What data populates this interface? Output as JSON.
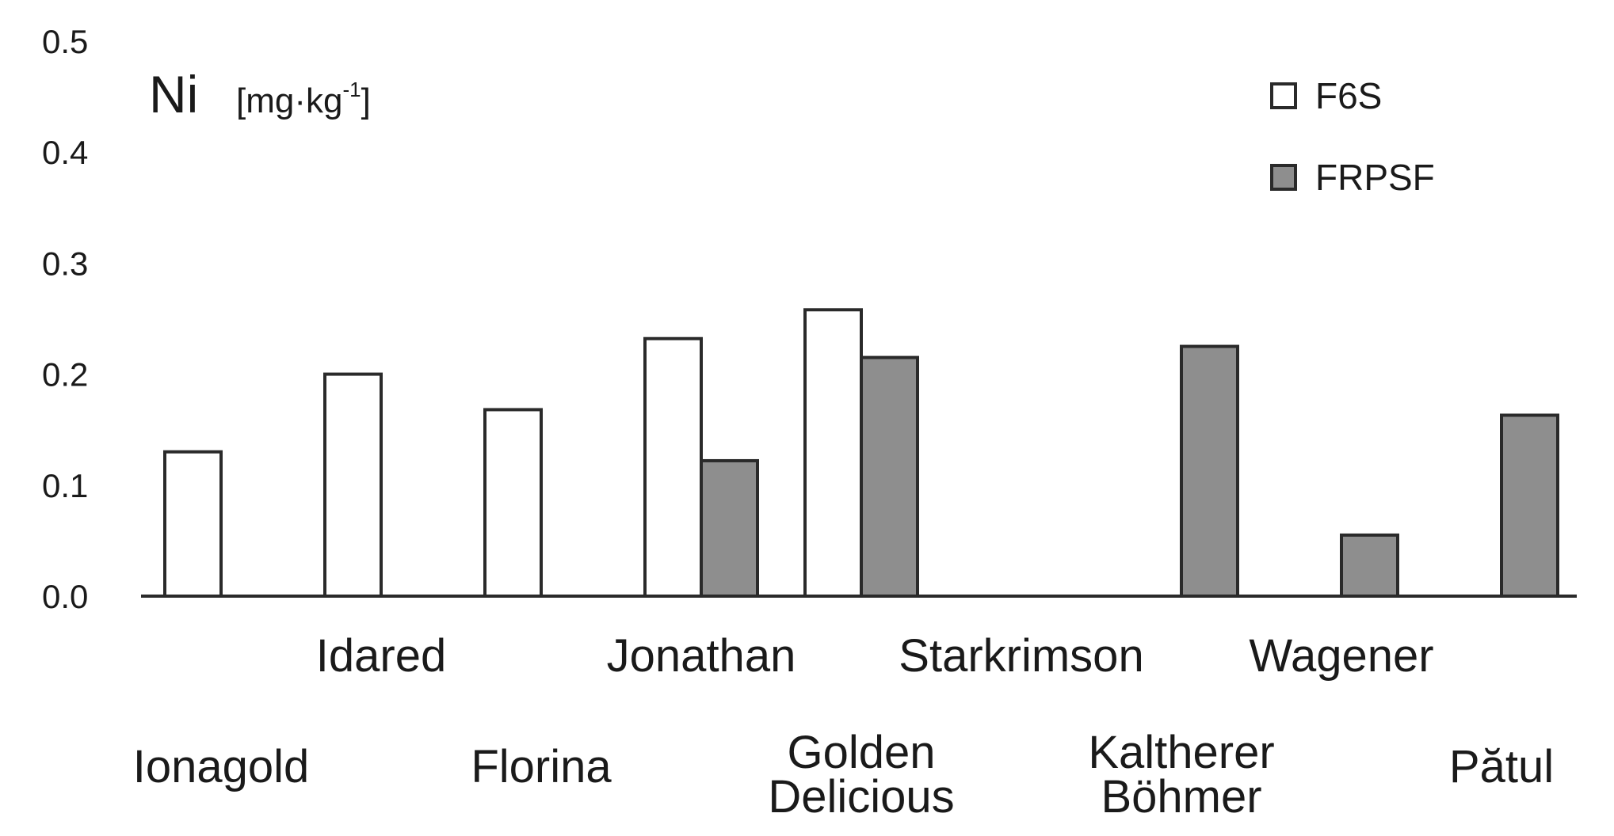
{
  "chart_data": {
    "type": "bar",
    "ylabel": "Ni",
    "ylabel_unit_prefix": "[mg·kg",
    "ylabel_unit_sup": "-1",
    "ylabel_unit_suffix": "]",
    "ylim": [
      0,
      0.5
    ],
    "yticks": [
      "0.0",
      "0.1",
      "0.2",
      "0.3",
      "0.4",
      "0.5"
    ],
    "legend_position": "top-right",
    "categories": [
      [
        "Ionagold"
      ],
      [
        "Idared"
      ],
      [
        "Florina"
      ],
      [
        "Jonathan"
      ],
      [
        "Golden",
        "Delicious"
      ],
      [
        "Starkrimson"
      ],
      [
        "Kaltherer",
        "Böhmer"
      ],
      [
        "Wagener"
      ],
      [
        "Pătul"
      ]
    ],
    "series": [
      {
        "name": "F6S",
        "color": "#ffffff",
        "values": [
          0.13,
          0.2,
          0.168,
          0.232,
          0.258,
          null,
          null,
          null,
          null
        ]
      },
      {
        "name": "FRPSF",
        "color": "#8e8e8e",
        "values": [
          null,
          null,
          null,
          0.122,
          0.215,
          null,
          0.225,
          0.055,
          0.163
        ]
      }
    ]
  }
}
